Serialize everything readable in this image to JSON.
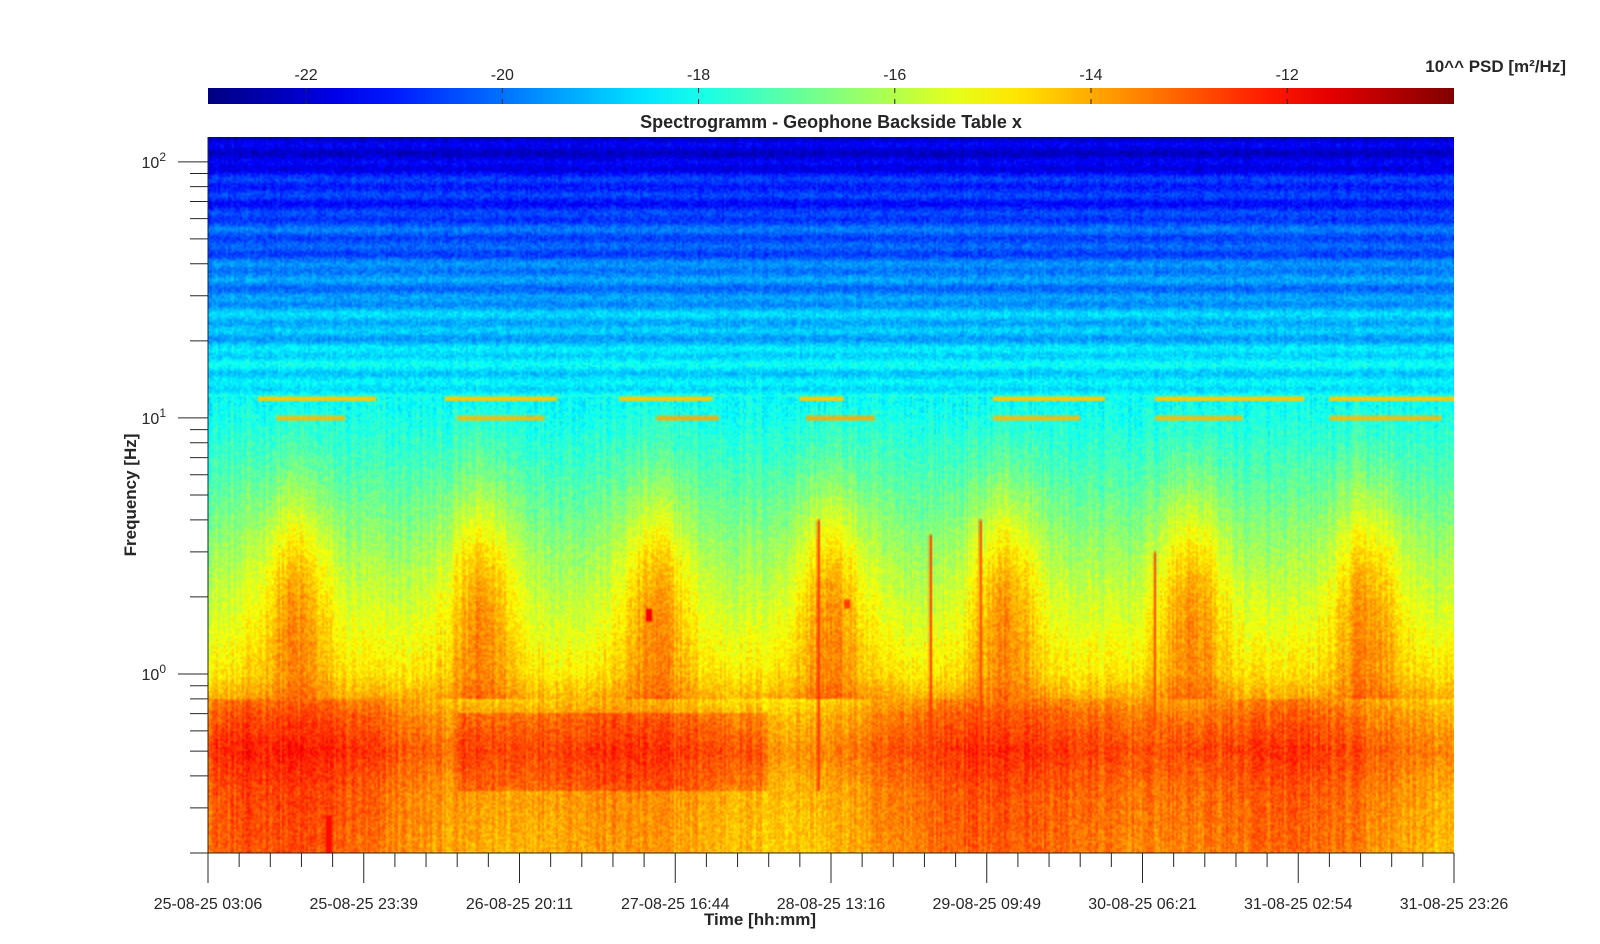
{
  "chart_data": {
    "type": "heatmap",
    "title": "Spectrogramm - Geophone Backside Table x",
    "xlabel": "Time [hh:mm]",
    "ylabel": "Frequency [Hz]",
    "y_scale": "log",
    "ylim": [
      0.2,
      125
    ],
    "y_tick_labels": [
      {
        "base": "10",
        "exp": "0",
        "value": 1
      },
      {
        "base": "10",
        "exp": "1",
        "value": 10
      },
      {
        "base": "10",
        "exp": "2",
        "value": 100
      }
    ],
    "x_tick_labels": [
      "25-08-25 03:06",
      "25-08-25 23:39",
      "26-08-25 20:11",
      "27-08-25 16:44",
      "28-08-25 13:16",
      "29-08-25 09:49",
      "30-08-25 06:21",
      "31-08-25 02:54",
      "31-08-25 23:26"
    ],
    "colorbar": {
      "label": "10^^ PSD [m²/Hz]",
      "range": [
        -23,
        -10.3
      ],
      "tick_values": [
        -22,
        -20,
        -18,
        -16,
        -14,
        -12
      ],
      "tick_labels": [
        "-22",
        "-20",
        "-18",
        "-16",
        "-14",
        "-12"
      ],
      "colormap": "jet"
    },
    "features": {
      "background_by_freq": [
        {
          "freq": 125,
          "level": -22.3
        },
        {
          "freq": 90,
          "level": -21.2
        },
        {
          "freq": 60,
          "level": -20.6
        },
        {
          "freq": 40,
          "level": -20.0
        },
        {
          "freq": 25,
          "level": -19.2
        },
        {
          "freq": 15,
          "level": -18.5
        },
        {
          "freq": 10,
          "level": -18.0
        },
        {
          "freq": 6,
          "level": -17.3
        },
        {
          "freq": 3,
          "level": -16.3
        },
        {
          "freq": 1.5,
          "level": -15.4
        },
        {
          "freq": 1.0,
          "level": -14.8
        },
        {
          "freq": 0.7,
          "level": -13.6
        },
        {
          "freq": 0.5,
          "level": -13.0
        },
        {
          "freq": 0.35,
          "level": -13.5
        },
        {
          "freq": 0.2,
          "level": -13.7
        }
      ],
      "daily_activity_periods": [
        [
          0.04,
          0.1
        ],
        [
          0.19,
          0.25
        ],
        [
          0.33,
          0.39
        ],
        [
          0.47,
          0.53
        ],
        [
          0.61,
          0.67
        ],
        [
          0.76,
          0.82
        ],
        [
          0.9,
          0.96
        ]
      ],
      "line_segments": [
        {
          "freq": 11.9,
          "x0": 0.04,
          "x1": 0.135,
          "level": -14.4
        },
        {
          "freq": 11.9,
          "x0": 0.19,
          "x1": 0.28,
          "level": -14.4
        },
        {
          "freq": 11.9,
          "x0": 0.33,
          "x1": 0.405,
          "level": -14.4
        },
        {
          "freq": 11.9,
          "x0": 0.475,
          "x1": 0.51,
          "level": -14.4
        },
        {
          "freq": 11.9,
          "x0": 0.63,
          "x1": 0.72,
          "level": -14.4
        },
        {
          "freq": 11.9,
          "x0": 0.76,
          "x1": 0.88,
          "level": -14.4
        },
        {
          "freq": 11.9,
          "x0": 0.9,
          "x1": 1.0,
          "level": -14.4
        },
        {
          "freq": 10.0,
          "x0": 0.055,
          "x1": 0.11,
          "level": -14.2
        },
        {
          "freq": 10.0,
          "x0": 0.2,
          "x1": 0.27,
          "level": -14.2
        },
        {
          "freq": 10.0,
          "x0": 0.36,
          "x1": 0.41,
          "level": -14.0
        },
        {
          "freq": 10.0,
          "x0": 0.48,
          "x1": 0.535,
          "level": -14.0
        },
        {
          "freq": 10.0,
          "x0": 0.63,
          "x1": 0.7,
          "level": -14.2
        },
        {
          "freq": 10.0,
          "x0": 0.76,
          "x1": 0.83,
          "level": -14.2
        },
        {
          "freq": 10.0,
          "x0": 0.9,
          "x1": 0.99,
          "level": -14.2
        }
      ],
      "spikes": [
        {
          "x": 0.097,
          "f_low": 0.2,
          "f_high": 0.28,
          "level": -12.0
        },
        {
          "x": 0.354,
          "f_low": 1.6,
          "f_high": 1.8,
          "level": -11.8
        },
        {
          "x": 0.513,
          "f_low": 1.8,
          "f_high": 1.95,
          "level": -12.6
        },
        {
          "x": 0.49,
          "f_low": 0.35,
          "f_high": 4.0,
          "level": -12.4
        },
        {
          "x": 0.58,
          "f_low": 0.5,
          "f_high": 3.5,
          "level": -12.6
        },
        {
          "x": 0.62,
          "f_low": 0.4,
          "f_high": 4.0,
          "level": -12.6
        },
        {
          "x": 0.76,
          "f_low": 0.6,
          "f_high": 3.0,
          "level": -12.8
        }
      ]
    }
  }
}
